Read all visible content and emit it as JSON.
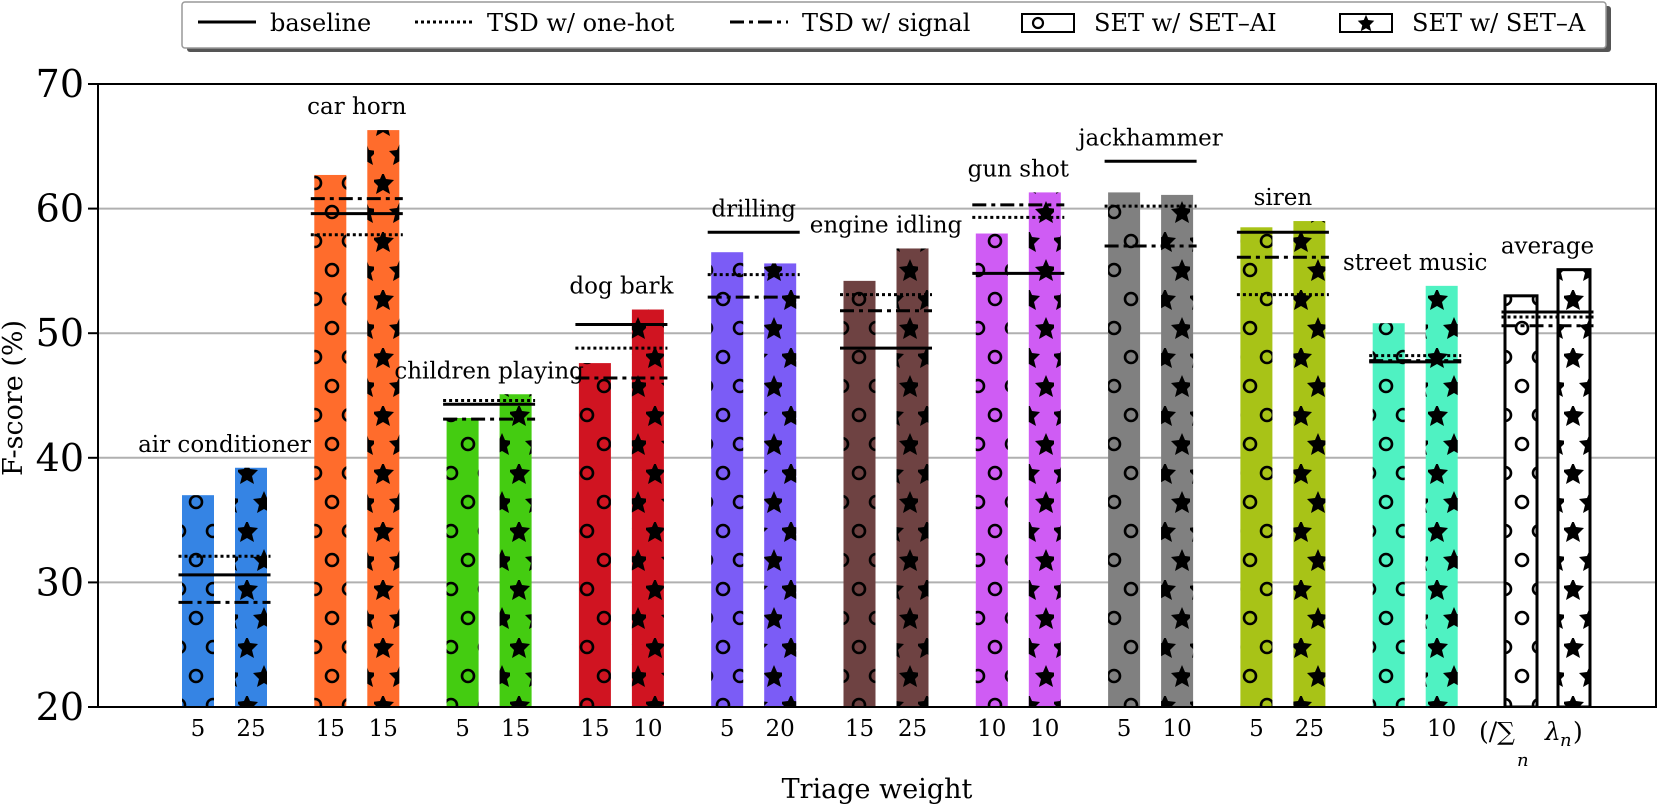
{
  "chart_data": {
    "type": "bar",
    "xlabel": "Triage weight",
    "ylabel": "F-score (%)",
    "ylim": [
      20,
      70
    ],
    "yticks": [
      20,
      30,
      40,
      50,
      60,
      70
    ],
    "grid": true,
    "legend_position": "top",
    "legend": [
      {
        "label": "baseline",
        "style": "solid"
      },
      {
        "label": "TSD w/ one-hot",
        "style": "dotted"
      },
      {
        "label": "TSD w/ signal",
        "style": "dashdot"
      },
      {
        "label": "SET w/ SET–AI",
        "style": "circle-hatch"
      },
      {
        "label": "SET w/ SET–A",
        "style": "star-hatch"
      }
    ],
    "groups": [
      {
        "label": "air conditioner",
        "color": "#3584e4",
        "set_ai_weight": "5",
        "set_a_weight": "25",
        "set_ai": 37.0,
        "set_a": 39.2,
        "baseline": 30.6,
        "tsd_onehot": 32.1,
        "tsd_signal": 28.4
      },
      {
        "label": "car horn",
        "color": "#ff6c2c",
        "set_ai_weight": "15",
        "set_a_weight": "15",
        "set_ai": 62.7,
        "set_a": 66.3,
        "baseline": 59.6,
        "tsd_onehot": 57.9,
        "tsd_signal": 60.8
      },
      {
        "label": "children playing",
        "color": "#44cc11",
        "set_ai_weight": "5",
        "set_a_weight": "15",
        "set_ai": 43.2,
        "set_a": 45.1,
        "baseline": 44.3,
        "tsd_onehot": 44.6,
        "tsd_signal": 43.1
      },
      {
        "label": "dog bark",
        "color": "#d01421",
        "set_ai_weight": "15",
        "set_a_weight": "10",
        "set_ai": 47.6,
        "set_a": 51.9,
        "baseline": 50.7,
        "tsd_onehot": 48.8,
        "tsd_signal": 46.4
      },
      {
        "label": "drilling",
        "color": "#7b5cf6",
        "set_ai_weight": "5",
        "set_a_weight": "20",
        "set_ai": 56.5,
        "set_a": 55.6,
        "baseline": 58.1,
        "tsd_onehot": 54.7,
        "tsd_signal": 52.9
      },
      {
        "label": "engine idling",
        "color": "#6e4242",
        "set_ai_weight": "15",
        "set_a_weight": "25",
        "set_ai": 54.2,
        "set_a": 56.8,
        "baseline": 48.8,
        "tsd_onehot": 53.1,
        "tsd_signal": 51.8
      },
      {
        "label": "gun shot",
        "color": "#cf5cf4",
        "set_ai_weight": "10",
        "set_a_weight": "10",
        "set_ai": 58.0,
        "set_a": 61.3,
        "baseline": 54.8,
        "tsd_onehot": 59.3,
        "tsd_signal": 60.3
      },
      {
        "label": "jackhammer",
        "color": "#808080",
        "set_ai_weight": "5",
        "set_a_weight": "10",
        "set_ai": 61.3,
        "set_a": 61.1,
        "baseline": 63.8,
        "tsd_onehot": 60.2,
        "tsd_signal": 57.0
      },
      {
        "label": "siren",
        "color": "#a8c317",
        "set_ai_weight": "5",
        "set_a_weight": "25",
        "set_ai": 58.5,
        "set_a": 59.0,
        "baseline": 58.1,
        "tsd_onehot": 53.1,
        "tsd_signal": 56.1
      },
      {
        "label": "street music",
        "color": "#4ff2c2",
        "set_ai_weight": "5",
        "set_a_weight": "10",
        "set_ai": 50.8,
        "set_a": 53.8,
        "baseline": 47.7,
        "tsd_onehot": 48.2,
        "tsd_signal": 47.8
      },
      {
        "label": "average",
        "color": "#ffffff",
        "set_ai_weight": "(/∑",
        "set_a_weight": "λ",
        "weight_subscript_sum": "n",
        "weight_subscript_lambda": "n",
        "weight_close": ")",
        "set_ai": 53.0,
        "set_a": 55.1,
        "baseline": 51.7,
        "tsd_onehot": 51.3,
        "tsd_signal": 50.6
      }
    ]
  }
}
